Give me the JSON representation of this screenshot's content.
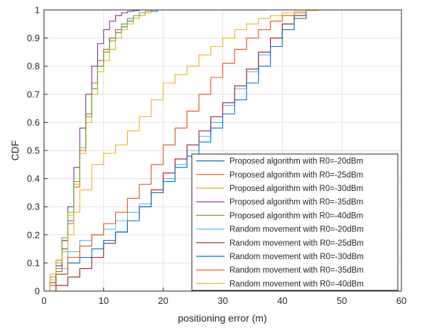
{
  "chart_data": {
    "type": "line",
    "title": "",
    "xlabel": "positioning error (m)",
    "ylabel": "CDF",
    "xlim": [
      0,
      60
    ],
    "ylim": [
      0,
      1
    ],
    "xticks": [
      0,
      10,
      20,
      30,
      40,
      50,
      60
    ],
    "yticks": [
      0,
      0.1,
      0.2,
      0.3,
      0.4,
      0.5,
      0.6,
      0.7,
      0.8,
      0.9,
      1
    ],
    "grid": true,
    "legend": "bottom-right",
    "series": [
      {
        "name": "Proposed algorithm with R0=-20dBm",
        "color": "#0072BD",
        "x": [
          0,
          1,
          2,
          3,
          4,
          5,
          6,
          7,
          8,
          9,
          10,
          11,
          12,
          13,
          14,
          15,
          16,
          17,
          18,
          19
        ],
        "y": [
          0,
          0.03,
          0.08,
          0.15,
          0.25,
          0.38,
          0.5,
          0.62,
          0.72,
          0.8,
          0.85,
          0.9,
          0.92,
          0.94,
          0.96,
          0.97,
          0.98,
          0.99,
          0.995,
          1
        ]
      },
      {
        "name": "Proposed algorithm with R0=-25dBm",
        "color": "#D95319",
        "x": [
          0,
          1,
          2,
          3,
          4,
          5,
          6,
          7,
          8,
          9,
          10,
          11,
          12,
          13,
          14,
          15,
          16,
          17,
          18
        ],
        "y": [
          0,
          0.02,
          0.07,
          0.14,
          0.24,
          0.37,
          0.5,
          0.63,
          0.74,
          0.82,
          0.86,
          0.9,
          0.93,
          0.95,
          0.97,
          0.98,
          0.99,
          0.995,
          1
        ]
      },
      {
        "name": "Proposed algorithm with R0=-30dBm",
        "color": "#EDB120",
        "x": [
          0,
          1,
          2,
          3,
          4,
          5,
          6,
          7,
          8,
          9,
          10,
          11,
          12,
          13,
          14,
          15,
          16,
          17,
          18
        ],
        "y": [
          0,
          0.04,
          0.1,
          0.18,
          0.27,
          0.38,
          0.49,
          0.6,
          0.7,
          0.78,
          0.82,
          0.86,
          0.9,
          0.93,
          0.95,
          0.97,
          0.98,
          0.99,
          1
        ]
      },
      {
        "name": "Proposed algorithm with R0=-35dBm",
        "color": "#7E2F8E",
        "x": [
          0,
          1,
          2,
          3,
          4,
          5,
          6,
          7,
          8,
          9,
          10,
          11,
          12,
          13,
          14,
          15,
          16
        ],
        "y": [
          0,
          0.03,
          0.09,
          0.18,
          0.3,
          0.44,
          0.58,
          0.7,
          0.8,
          0.88,
          0.93,
          0.96,
          0.98,
          0.99,
          0.995,
          0.998,
          1
        ]
      },
      {
        "name": "Proposed algorithm with R0=-40dBm",
        "color": "#77AC30",
        "x": [
          0,
          1,
          2,
          3,
          4,
          5,
          6,
          7,
          8,
          9,
          10,
          11,
          12,
          13,
          14,
          15,
          16,
          17,
          18
        ],
        "y": [
          0,
          0.05,
          0.11,
          0.19,
          0.28,
          0.39,
          0.51,
          0.62,
          0.72,
          0.8,
          0.85,
          0.89,
          0.92,
          0.95,
          0.97,
          0.98,
          0.99,
          0.995,
          1
        ]
      },
      {
        "name": "Random movement with R0=-20dBm",
        "color": "#4DBEEE",
        "x": [
          0,
          2,
          4,
          6,
          8,
          10,
          12,
          14,
          16,
          18,
          20,
          22,
          24,
          26,
          28,
          30,
          32,
          34,
          36,
          38,
          40,
          42,
          44
        ],
        "y": [
          0,
          0.08,
          0.14,
          0.18,
          0.2,
          0.22,
          0.25,
          0.28,
          0.31,
          0.35,
          0.4,
          0.45,
          0.5,
          0.55,
          0.6,
          0.66,
          0.72,
          0.78,
          0.84,
          0.9,
          0.95,
          0.98,
          1
        ]
      },
      {
        "name": "Random movement with R0=-25dBm",
        "color": "#A2142F",
        "x": [
          0,
          2,
          4,
          6,
          8,
          10,
          12,
          14,
          16,
          18,
          20,
          22,
          24,
          26,
          28,
          30,
          32,
          34,
          36,
          38,
          40,
          42,
          44
        ],
        "y": [
          0,
          0.02,
          0.05,
          0.08,
          0.12,
          0.17,
          0.21,
          0.25,
          0.3,
          0.36,
          0.42,
          0.47,
          0.52,
          0.57,
          0.62,
          0.67,
          0.73,
          0.79,
          0.85,
          0.9,
          0.95,
          0.98,
          1
        ]
      },
      {
        "name": "Random movement with R0=-30dBm",
        "color": "#0072BD",
        "x": [
          0,
          2,
          4,
          6,
          8,
          10,
          12,
          14,
          16,
          18,
          20,
          22,
          24,
          26,
          28,
          30,
          32,
          34,
          36,
          38,
          40,
          42,
          44
        ],
        "y": [
          0,
          0.06,
          0.1,
          0.12,
          0.15,
          0.18,
          0.21,
          0.25,
          0.3,
          0.35,
          0.39,
          0.44,
          0.48,
          0.53,
          0.58,
          0.63,
          0.68,
          0.74,
          0.8,
          0.87,
          0.93,
          0.97,
          1
        ]
      },
      {
        "name": "Random movement with R0=-35dBm",
        "color": "#D95319",
        "x": [
          0,
          2,
          4,
          6,
          8,
          10,
          12,
          14,
          16,
          18,
          20,
          22,
          24,
          26,
          28,
          30,
          32,
          34,
          36,
          38,
          40,
          42,
          44
        ],
        "y": [
          0,
          0.06,
          0.12,
          0.16,
          0.2,
          0.24,
          0.28,
          0.33,
          0.38,
          0.45,
          0.52,
          0.58,
          0.64,
          0.7,
          0.76,
          0.81,
          0.86,
          0.9,
          0.93,
          0.96,
          0.98,
          0.99,
          1
        ]
      },
      {
        "name": "Random movement with R0=-40dBm",
        "color": "#EDB120",
        "x": [
          0,
          1,
          2,
          3,
          4,
          5,
          6,
          8,
          10,
          12,
          14,
          16,
          18,
          20,
          22,
          24,
          26,
          28,
          30,
          32,
          34,
          36,
          38,
          40,
          42,
          44,
          46
        ],
        "y": [
          0,
          0.06,
          0.1,
          0.14,
          0.2,
          0.28,
          0.36,
          0.45,
          0.49,
          0.52,
          0.57,
          0.62,
          0.68,
          0.74,
          0.77,
          0.8,
          0.84,
          0.87,
          0.9,
          0.93,
          0.95,
          0.97,
          0.98,
          0.99,
          0.995,
          0.998,
          1
        ]
      }
    ]
  }
}
